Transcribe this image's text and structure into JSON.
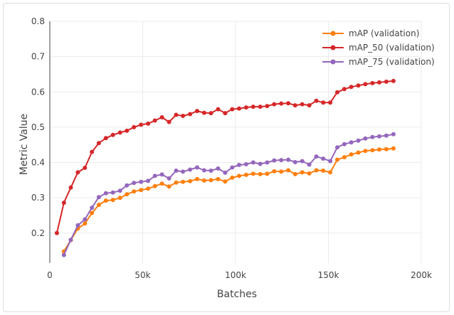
{
  "chart_data": {
    "type": "line",
    "title": "",
    "xlabel": "Batches",
    "ylabel": "Metric Value",
    "xlim": [
      0,
      200000
    ],
    "ylim": [
      0.115,
      0.8
    ],
    "xticks": [
      0,
      50000,
      100000,
      150000,
      200000
    ],
    "xtick_labels": [
      "0",
      "50k",
      "100k",
      "150k",
      "200k"
    ],
    "yticks": [
      0.2,
      0.3,
      0.4,
      0.5,
      0.6,
      0.7,
      0.8
    ],
    "ytick_labels": [
      "0.2",
      "0.3",
      "0.4",
      "0.5",
      "0.6",
      "0.7",
      "0.8"
    ],
    "grid": true,
    "legend_position": "top-right",
    "x": [
      3800,
      7600,
      11300,
      15100,
      18900,
      22700,
      26400,
      30200,
      34000,
      37800,
      41500,
      45300,
      49100,
      52900,
      56600,
      60400,
      64200,
      68000,
      71700,
      75500,
      79300,
      83100,
      86800,
      90600,
      94400,
      98200,
      101900,
      105700,
      109500,
      113300,
      117000,
      120800,
      124600,
      128400,
      132100,
      135900,
      139700,
      143500,
      147200,
      151000,
      154800,
      158600,
      162300,
      166100,
      169900,
      173700,
      177400,
      181200,
      185000
    ],
    "series": [
      {
        "name": "mAP (validation)",
        "color": "#ff7f0e",
        "values": [
          null,
          0.148,
          0.18,
          0.213,
          0.227,
          0.257,
          0.28,
          0.292,
          0.294,
          0.3,
          0.31,
          0.318,
          0.322,
          0.326,
          0.333,
          0.34,
          0.332,
          0.343,
          0.345,
          0.347,
          0.353,
          0.349,
          0.35,
          0.353,
          0.346,
          0.357,
          0.362,
          0.365,
          0.368,
          0.367,
          0.368,
          0.375,
          0.374,
          0.378,
          0.367,
          0.372,
          0.369,
          0.378,
          0.377,
          0.372,
          0.408,
          0.415,
          0.423,
          0.428,
          0.433,
          0.435,
          0.437,
          0.438,
          0.44
        ]
      },
      {
        "name": "mAP_50 (validation)",
        "color": "#d62728",
        "values": [
          0.2,
          0.286,
          0.329,
          0.372,
          0.385,
          0.43,
          0.455,
          0.469,
          0.478,
          0.485,
          0.49,
          0.5,
          0.507,
          0.51,
          0.519,
          0.528,
          0.515,
          0.535,
          0.532,
          0.537,
          0.546,
          0.541,
          0.54,
          0.551,
          0.54,
          0.551,
          0.553,
          0.556,
          0.558,
          0.558,
          0.56,
          0.565,
          0.567,
          0.568,
          0.562,
          0.565,
          0.562,
          0.575,
          0.57,
          0.57,
          0.599,
          0.608,
          0.614,
          0.618,
          0.622,
          0.625,
          0.627,
          0.629,
          0.631
        ]
      },
      {
        "name": "mAP_75 (validation)",
        "color": "#9467bd",
        "values": [
          null,
          0.138,
          0.181,
          0.222,
          0.239,
          0.272,
          0.302,
          0.313,
          0.315,
          0.32,
          0.335,
          0.342,
          0.345,
          0.348,
          0.362,
          0.366,
          0.355,
          0.377,
          0.374,
          0.38,
          0.386,
          0.378,
          0.377,
          0.383,
          0.371,
          0.386,
          0.393,
          0.395,
          0.4,
          0.396,
          0.4,
          0.406,
          0.407,
          0.408,
          0.401,
          0.404,
          0.394,
          0.417,
          0.411,
          0.404,
          0.443,
          0.452,
          0.457,
          0.462,
          0.468,
          0.472,
          0.474,
          0.476,
          0.48
        ]
      }
    ]
  }
}
